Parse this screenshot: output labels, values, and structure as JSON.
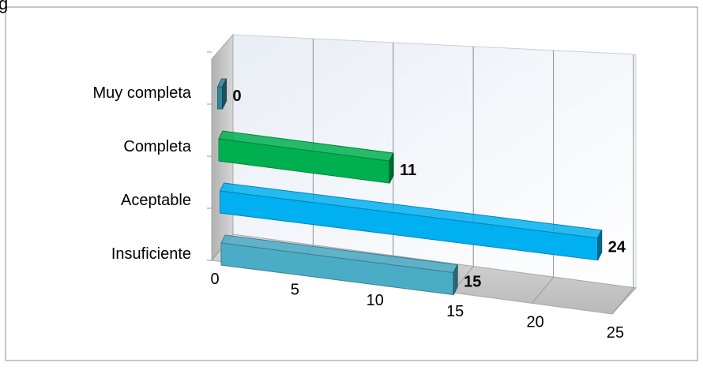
{
  "chart_data": {
    "type": "bar",
    "orientation": "horizontal",
    "three_d": true,
    "title": "",
    "xlabel": "",
    "ylabel": "",
    "categories": [
      "Insuficiente",
      "Aceptable",
      "Completa",
      "Muy completa"
    ],
    "values": [
      15,
      24,
      11,
      0
    ],
    "value_labels": [
      "15",
      "24",
      "11",
      "0"
    ],
    "colors": [
      "#4BACC6",
      "#00B0F0",
      "#00B050",
      "#31859C"
    ],
    "xlim": [
      0,
      25
    ],
    "x_ticks": [
      0,
      5,
      10,
      15,
      20,
      25
    ],
    "x_tick_labels": [
      "0",
      "5",
      "10",
      "15",
      "20",
      "25"
    ],
    "grid": true,
    "legend": "none"
  },
  "partial_top_text": "g"
}
